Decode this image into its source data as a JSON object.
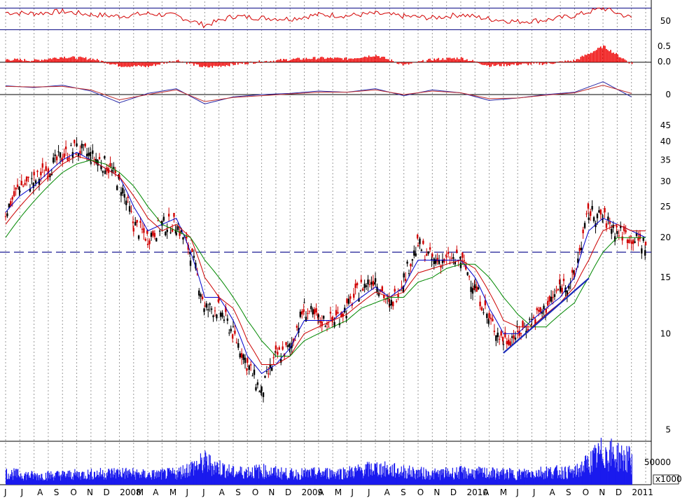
{
  "colors": {
    "background": "#ffffff",
    "grid": "#9a9a9a",
    "rsi_line": "#d40000",
    "momentum_bars": "#ee0000",
    "macd_line": "#2a2aa8",
    "macd_signal": "#c03030",
    "price_candles": "#000000",
    "price_down_candles": "#d00000",
    "ma_short": "#0000cc",
    "ma_mid": "#cc0000",
    "ma_long": "#008800",
    "support_dash": "#000088",
    "trendline": "#1a2ab8",
    "volume_bars": "#1a1aee",
    "panel_border": "#000080"
  },
  "chart_data": [
    {
      "type": "line",
      "panel": "rsi",
      "right_axis_labels": [
        "50"
      ],
      "reference_levels": [
        70,
        30
      ],
      "ylim": [
        20,
        80
      ],
      "x_month_index": [
        0,
        2,
        4,
        6,
        8,
        10,
        12,
        14,
        16,
        18,
        20,
        22,
        24,
        26,
        28,
        30,
        32,
        34,
        36,
        38,
        40,
        42,
        44
      ],
      "values": [
        62,
        60,
        64,
        58,
        55,
        60,
        56,
        38,
        55,
        52,
        50,
        58,
        56,
        60,
        55,
        52,
        58,
        50,
        45,
        48,
        56,
        70,
        52
      ]
    },
    {
      "type": "bar",
      "panel": "momentum",
      "right_axis_labels": [
        "0.5",
        "0.0"
      ],
      "ylim": [
        -0.3,
        0.65
      ],
      "x_month_index": [
        0,
        2,
        4,
        6,
        8,
        10,
        12,
        14,
        16,
        18,
        20,
        22,
        24,
        26,
        28,
        30,
        32,
        34,
        36,
        38,
        40,
        42,
        44
      ],
      "values": [
        0.08,
        0.05,
        0.15,
        0.1,
        -0.1,
        -0.12,
        0.06,
        -0.15,
        -0.06,
        0.02,
        0.08,
        0.12,
        0.1,
        0.2,
        -0.08,
        0.08,
        0.12,
        -0.1,
        -0.06,
        -0.04,
        0.05,
        0.45,
        -0.05
      ]
    },
    {
      "type": "line",
      "panel": "macd",
      "right_axis_labels": [
        "0"
      ],
      "ylim": [
        -3,
        3
      ],
      "x_month_index": [
        0,
        2,
        4,
        6,
        8,
        10,
        12,
        14,
        16,
        18,
        20,
        22,
        24,
        26,
        28,
        30,
        32,
        34,
        36,
        38,
        40,
        42,
        44
      ],
      "series": [
        {
          "values": [
            1.5,
            1.2,
            1.6,
            0.6,
            -1.4,
            0.2,
            1.0,
            -1.6,
            -0.4,
            0.0,
            0.2,
            0.6,
            0.4,
            1.0,
            -0.2,
            0.8,
            0.3,
            -1.0,
            -0.6,
            0.0,
            0.4,
            2.2,
            -0.4
          ]
        },
        {
          "values": [
            1.4,
            1.3,
            1.4,
            0.8,
            -0.9,
            0.0,
            0.8,
            -1.2,
            -0.5,
            -0.2,
            0.1,
            0.4,
            0.4,
            0.8,
            0.0,
            0.6,
            0.3,
            -0.7,
            -0.6,
            -0.1,
            0.3,
            1.6,
            0.2
          ]
        }
      ]
    },
    {
      "type": "candlestick",
      "panel": "price",
      "scale": "log",
      "right_axis_labels": [
        "45",
        "40",
        "35",
        "30",
        "25",
        "20",
        "15",
        "10",
        "5"
      ],
      "ylim": [
        4.6,
        48
      ],
      "support_level": 18,
      "x_month_index": [
        0,
        1,
        2,
        3,
        4,
        5,
        6,
        7,
        8,
        9,
        10,
        11,
        12,
        13,
        14,
        15,
        16,
        17,
        18,
        19,
        20,
        21,
        22,
        23,
        24,
        25,
        26,
        27,
        28,
        29,
        30,
        31,
        32,
        33,
        34,
        35,
        36,
        37,
        38,
        39,
        40,
        41,
        42,
        43,
        44,
        45
      ],
      "close": [
        24,
        29,
        30,
        33,
        36,
        38,
        36,
        34,
        30,
        22,
        20,
        22,
        22,
        18,
        12,
        12,
        10,
        8,
        6.5,
        8.5,
        9,
        12,
        11,
        11,
        12,
        14,
        15,
        12,
        15,
        19,
        17,
        17,
        17,
        14,
        11,
        9.5,
        10,
        11,
        12,
        14,
        15,
        24,
        23,
        21,
        20,
        19
      ],
      "ma_short": [
        24,
        27,
        29,
        32,
        35,
        37,
        35,
        33,
        31,
        25,
        21,
        22,
        23,
        18,
        13,
        13,
        11,
        8.5,
        7.5,
        8,
        9,
        11,
        11,
        11,
        12,
        13,
        14,
        13,
        14,
        17,
        17,
        17,
        17,
        15,
        12,
        10,
        10,
        11,
        12,
        13,
        15,
        21,
        23,
        22,
        21,
        20
      ],
      "ma_mid": [
        22,
        25,
        28,
        31,
        34,
        36,
        35,
        33,
        31,
        27,
        23,
        21,
        22,
        20,
        15,
        13,
        12,
        9.5,
        8,
        8,
        8.5,
        10,
        10.5,
        11,
        11.5,
        12.5,
        13.5,
        13,
        13.5,
        15.5,
        16,
        16.5,
        17,
        16,
        13.5,
        11,
        10.5,
        10.5,
        11.5,
        12.5,
        14,
        17,
        21,
        22,
        21,
        21
      ],
      "ma_long": [
        20,
        23,
        26,
        29,
        32,
        34,
        35,
        34,
        32,
        29,
        25,
        22,
        21,
        20,
        17,
        15,
        13,
        11,
        9.5,
        8.5,
        8.5,
        9.5,
        10,
        10.5,
        11,
        12,
        12.5,
        13,
        13,
        14.5,
        15,
        16,
        16.5,
        16.5,
        15,
        13,
        11.5,
        10.5,
        10.5,
        11.5,
        12.5,
        15,
        18,
        20,
        20,
        20
      ],
      "trendline": {
        "from": [
          35,
          8.7
        ],
        "to": [
          41,
          14.9
        ]
      }
    },
    {
      "type": "bar",
      "panel": "volume",
      "right_axis_labels": [
        "50000"
      ],
      "unit_label": "x1000",
      "ylim": [
        0,
        100000
      ],
      "x_month_index": [
        0,
        2,
        4,
        6,
        8,
        10,
        12,
        14,
        16,
        18,
        20,
        22,
        24,
        26,
        28,
        30,
        32,
        34,
        36,
        38,
        40,
        42,
        44
      ],
      "values": [
        28000,
        22000,
        24000,
        26000,
        30000,
        24000,
        28000,
        55000,
        30000,
        34000,
        26000,
        28000,
        30000,
        40000,
        32000,
        26000,
        30000,
        28000,
        26000,
        32000,
        30000,
        80000,
        60000
      ]
    }
  ],
  "x_axis": {
    "month_labels": [
      "J",
      "J",
      "A",
      "S",
      "O",
      "N",
      "D",
      "2008",
      "M",
      "A",
      "M",
      "J",
      "J",
      "A",
      "S",
      "O",
      "N",
      "D",
      "2009",
      "A",
      "M",
      "J",
      "J",
      "A",
      "S",
      "O",
      "N",
      "D",
      "2010",
      "A",
      "M",
      "J",
      "J",
      "A",
      "S",
      "O",
      "N",
      "D",
      "2011"
    ]
  }
}
